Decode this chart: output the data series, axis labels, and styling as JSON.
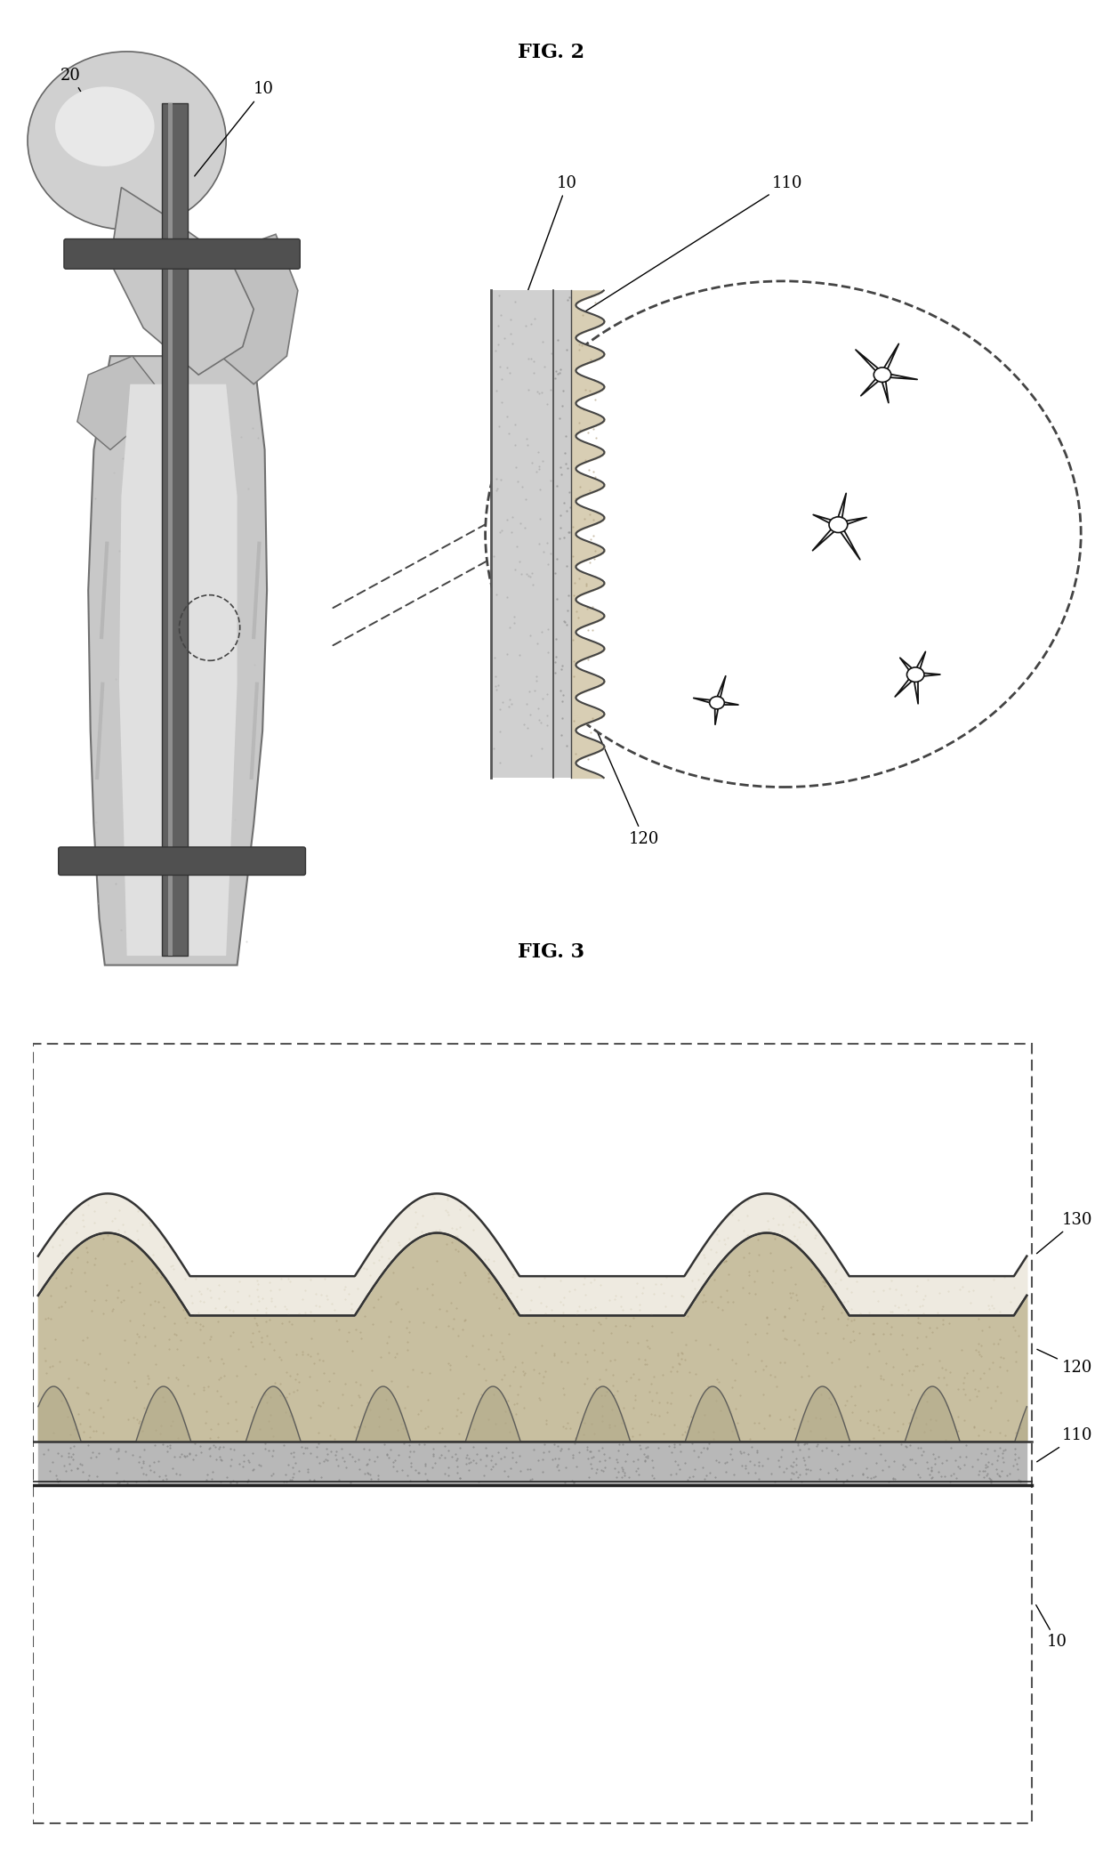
{
  "fig_title1": "FIG. 2",
  "fig_title2": "FIG. 3",
  "background_color": "#ffffff",
  "bone_color_dark": "#888888",
  "bone_color_mid": "#aaaaaa",
  "bone_color_light": "#cccccc",
  "nail_color": "#555555",
  "layer110_color": "#b8b8b8",
  "layer120_color": "#c8c0a0",
  "layer130_color": "#e8e4d8",
  "base_color": "#f8f8f8",
  "cell_color": "#ffffff",
  "cell_edge": "#111111"
}
